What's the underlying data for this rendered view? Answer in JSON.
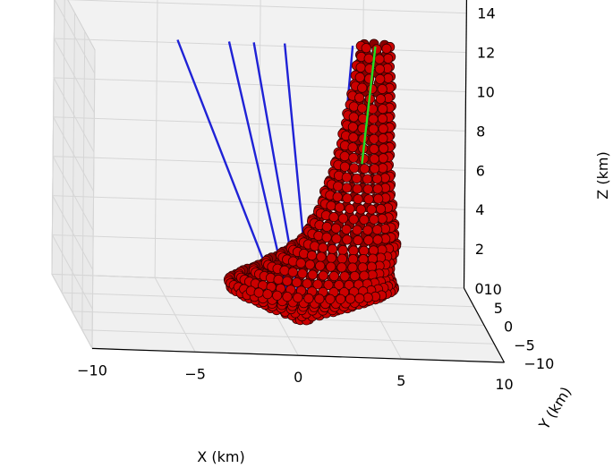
{
  "chart_data": {
    "type": "scatter3d",
    "axes": {
      "x": {
        "label": "X (km)",
        "ticks": [
          -10,
          -5,
          0,
          5,
          10
        ],
        "range": [
          -10,
          10
        ]
      },
      "y": {
        "label": "Y (km)",
        "ticks": [
          -10,
          -5,
          0,
          5,
          10
        ],
        "range": [
          -10,
          10
        ]
      },
      "z": {
        "label": "Z (km)",
        "ticks": [
          0,
          2,
          4,
          6,
          8,
          10,
          12,
          14
        ],
        "range": [
          0,
          14
        ]
      }
    },
    "grid": true,
    "colors": {
      "scatter": "#cc0000",
      "scatter_edge": "#330000",
      "lines": "#1f22d6",
      "axis_line": "#22dd22"
    },
    "conduit_lines": [
      {
        "top": [
          -5.0,
          0.0,
          14.0
        ],
        "bottom": [
          0.0,
          0.0,
          1.0
        ]
      },
      {
        "top": [
          -2.5,
          0.0,
          14.0
        ],
        "bottom": [
          0.5,
          0.0,
          1.0
        ]
      },
      {
        "top": [
          -1.3,
          0.0,
          14.0
        ],
        "bottom": [
          1.0,
          0.0,
          1.0
        ]
      },
      {
        "top": [
          0.2,
          0.0,
          14.0
        ],
        "bottom": [
          1.5,
          0.0,
          1.0
        ]
      },
      {
        "top": [
          3.5,
          0.0,
          14.0
        ],
        "bottom": [
          2.5,
          0.0,
          1.0
        ]
      }
    ],
    "vertical_axis": {
      "from": [
        4.0,
        0.0,
        8.0
      ],
      "to": [
        4.6,
        0.0,
        14.0
      ]
    },
    "rings": [
      {
        "z": 0.0,
        "cx": 1.2,
        "radius": 0.3
      },
      {
        "z": 0.3,
        "cx": 1.2,
        "radius": 0.9
      },
      {
        "z": 0.6,
        "cx": 1.2,
        "radius": 1.7
      },
      {
        "z": 0.9,
        "cx": 1.3,
        "radius": 2.4
      },
      {
        "z": 1.2,
        "cx": 1.3,
        "radius": 3.1
      },
      {
        "z": 1.5,
        "cx": 1.4,
        "radius": 3.7
      },
      {
        "z": 1.8,
        "cx": 1.6,
        "radius": 4.0
      },
      {
        "z": 2.1,
        "cx": 1.8,
        "radius": 3.7
      },
      {
        "z": 2.4,
        "cx": 2.1,
        "radius": 3.3
      },
      {
        "z": 2.8,
        "cx": 2.4,
        "radius": 3.0
      },
      {
        "z": 3.2,
        "cx": 2.8,
        "radius": 2.7
      },
      {
        "z": 3.6,
        "cx": 3.1,
        "radius": 2.5
      },
      {
        "z": 4.0,
        "cx": 3.4,
        "radius": 2.3
      },
      {
        "z": 4.5,
        "cx": 3.5,
        "radius": 2.1
      },
      {
        "z": 5.0,
        "cx": 3.6,
        "radius": 2.0
      },
      {
        "z": 5.5,
        "cx": 3.7,
        "radius": 1.8
      },
      {
        "z": 6.0,
        "cx": 3.8,
        "radius": 1.7
      },
      {
        "z": 6.5,
        "cx": 3.8,
        "radius": 1.6
      },
      {
        "z": 7.0,
        "cx": 3.9,
        "radius": 1.5
      },
      {
        "z": 7.5,
        "cx": 4.0,
        "radius": 1.4
      },
      {
        "z": 8.0,
        "cx": 4.0,
        "radius": 1.3
      },
      {
        "z": 8.5,
        "cx": 4.1,
        "radius": 1.25
      },
      {
        "z": 9.0,
        "cx": 4.2,
        "radius": 1.2
      },
      {
        "z": 9.5,
        "cx": 4.2,
        "radius": 1.15
      },
      {
        "z": 10.0,
        "cx": 4.3,
        "radius": 1.1
      },
      {
        "z": 10.5,
        "cx": 4.3,
        "radius": 1.05
      },
      {
        "z": 11.0,
        "cx": 4.4,
        "radius": 1.0
      },
      {
        "z": 11.5,
        "cx": 4.4,
        "radius": 0.95
      },
      {
        "z": 12.0,
        "cx": 4.5,
        "radius": 0.9
      },
      {
        "z": 12.5,
        "cx": 4.5,
        "radius": 0.85
      },
      {
        "z": 13.0,
        "cx": 4.5,
        "radius": 0.8
      },
      {
        "z": 13.5,
        "cx": 4.6,
        "radius": 0.75
      },
      {
        "z": 14.0,
        "cx": 4.6,
        "radius": 0.7
      }
    ]
  }
}
